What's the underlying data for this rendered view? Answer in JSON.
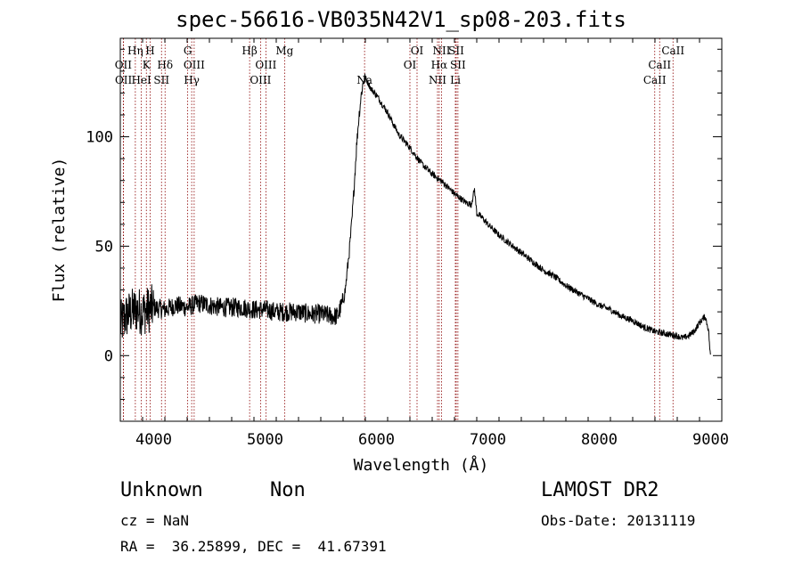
{
  "chart_data": {
    "type": "line",
    "title": "spec-56616-VB035N42V1_sp08-203.fits",
    "xlabel": "Wavelength (Å)",
    "ylabel": "Flux (relative)",
    "xlim": [
      3700,
      9100
    ],
    "ylim": [
      -30,
      145
    ],
    "xticks": [
      4000,
      5000,
      6000,
      7000,
      8000,
      9000
    ],
    "yticks": [
      0,
      50,
      100
    ],
    "grid": false,
    "line_color": "#000000",
    "marker_color": "#8b0000",
    "series": [
      {
        "x": [
          3700,
          3750,
          3800,
          3850,
          3900,
          3950,
          4000,
          4100,
          4200,
          4300,
          4400,
          4500,
          4600,
          4700,
          4800,
          4900,
          5000,
          5100,
          5200,
          5300,
          5400,
          5500,
          5600,
          5650,
          5700,
          5720,
          5740,
          5760,
          5780,
          5800,
          5820,
          5840,
          5860,
          5880,
          5900,
          5920,
          5950,
          6000,
          6050,
          6100,
          6150,
          6200,
          6300,
          6400,
          6500,
          6600,
          6700,
          6800,
          6850,
          6880,
          6900,
          6950,
          7000,
          7100,
          7200,
          7300,
          7400,
          7500,
          7600,
          7700,
          7800,
          7900,
          8000,
          8100,
          8200,
          8300,
          8400,
          8500,
          8600,
          8700,
          8750,
          8800,
          8850,
          8900,
          8950,
          8980,
          9000
        ],
        "y": [
          14,
          18,
          20,
          21,
          20,
          21,
          22,
          21,
          23,
          22,
          24,
          23,
          22,
          22,
          22,
          21,
          21,
          20,
          20,
          20,
          19,
          19,
          18,
          18,
          25,
          30,
          40,
          50,
          62,
          78,
          95,
          108,
          118,
          125,
          127,
          125,
          122,
          119,
          115,
          111,
          106,
          101,
          95,
          88,
          83,
          79,
          74,
          70,
          69,
          76,
          65,
          63,
          60,
          55,
          51,
          47,
          43,
          39,
          36,
          32,
          29,
          26,
          23,
          21,
          18,
          16,
          13,
          11,
          10,
          9,
          8,
          9,
          11,
          15,
          18,
          12,
          -2
        ]
      }
    ],
    "spectral_lines": [
      {
        "label": "Hη",
        "wavelength": 3835,
        "row": 1
      },
      {
        "label": "H",
        "wavelength": 3968,
        "row": 1
      },
      {
        "label": "OII",
        "wavelength": 3727,
        "row": 2
      },
      {
        "label": "K",
        "wavelength": 3934,
        "row": 2
      },
      {
        "label": "Hδ",
        "wavelength": 4102,
        "row": 2
      },
      {
        "label": "OII",
        "wavelength": 3729,
        "row": 3
      },
      {
        "label": "HeI",
        "wavelength": 3889,
        "row": 3
      },
      {
        "label": "SII",
        "wavelength": 4070,
        "row": 3
      },
      {
        "label": "G",
        "wavelength": 4305,
        "row": 1
      },
      {
        "label": "OIII",
        "wavelength": 4363,
        "row": 2
      },
      {
        "label": "Hγ",
        "wavelength": 4341,
        "row": 3
      },
      {
        "label": "Hβ",
        "wavelength": 4861,
        "row": 1
      },
      {
        "label": "Mg",
        "wavelength": 5175,
        "row": 1
      },
      {
        "label": "OIII",
        "wavelength": 5007,
        "row": 2
      },
      {
        "label": "OIII",
        "wavelength": 4959,
        "row": 3
      },
      {
        "label": "Na",
        "wavelength": 5893,
        "row": 3
      },
      {
        "label": "OI",
        "wavelength": 6364,
        "row": 1
      },
      {
        "label": "OI",
        "wavelength": 6300,
        "row": 2
      },
      {
        "label": "NII",
        "wavelength": 6584,
        "row": 1
      },
      {
        "label": "SII",
        "wavelength": 6716,
        "row": 1
      },
      {
        "label": "Hα",
        "wavelength": 6563,
        "row": 2
      },
      {
        "label": "SII",
        "wavelength": 6731,
        "row": 2
      },
      {
        "label": "NII",
        "wavelength": 6548,
        "row": 3
      },
      {
        "label": "Li",
        "wavelength": 6708,
        "row": 3
      },
      {
        "label": "CaII",
        "wavelength": 8662,
        "row": 1
      },
      {
        "label": "CaII",
        "wavelength": 8542,
        "row": 2
      },
      {
        "label": "CaII",
        "wavelength": 8498,
        "row": 3
      }
    ]
  },
  "info": {
    "object_class": "Unknown",
    "subclass": "Non",
    "survey": "LAMOST DR2",
    "redshift": "cz = NaN",
    "obs_date": "Obs-Date: 20131119",
    "coords": "RA =  36.25899, DEC =  41.67391"
  }
}
